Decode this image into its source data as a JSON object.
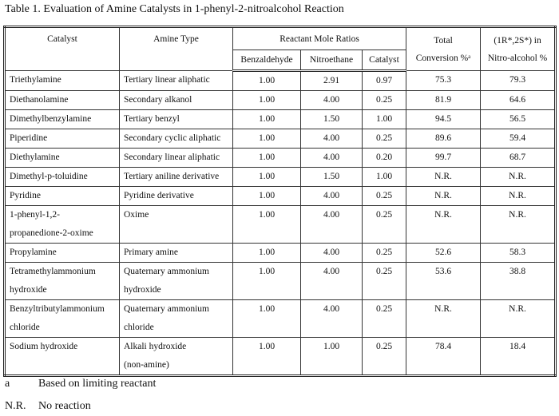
{
  "title": "Table 1.  Evaluation of Amine Catalysts in 1-phenyl-2-nitroalcohol Reaction",
  "headers": {
    "catalyst": "Catalyst",
    "amine_type": "Amine Type",
    "ratios": "Reactant Mole Ratios",
    "benzaldehyde": "Benzaldehyde",
    "nitroethane": "Nitroethane",
    "catalyst_ratio": "Catalyst",
    "total_1": "Total",
    "total_2": "Conversion %ᵃ",
    "nitro_1": "(1R*,2S*) in",
    "nitro_2": "Nitro-alcohol %"
  },
  "rows": [
    {
      "catalyst": [
        "Triethylamine"
      ],
      "type": [
        "Tertiary linear aliphatic"
      ],
      "benz": "1.00",
      "nitro": "2.91",
      "cat": "0.97",
      "conv": "75.3",
      "na": "79.3"
    },
    {
      "catalyst": [
        "Diethanolamine"
      ],
      "type": [
        "Secondary alkanol"
      ],
      "benz": "1.00",
      "nitro": "4.00",
      "cat": "0.25",
      "conv": "81.9",
      "na": "64.6"
    },
    {
      "catalyst": [
        "Dimethylbenzylamine"
      ],
      "type": [
        "Tertiary benzyl"
      ],
      "benz": "1.00",
      "nitro": "1.50",
      "cat": "1.00",
      "conv": "94.5",
      "na": "56.5"
    },
    {
      "catalyst": [
        "Piperidine"
      ],
      "type": [
        "Secondary cyclic aliphatic"
      ],
      "benz": "1.00",
      "nitro": "4.00",
      "cat": "0.25",
      "conv": "89.6",
      "na": "59.4"
    },
    {
      "catalyst": [
        "Diethylamine"
      ],
      "type": [
        "Secondary linear aliphatic"
      ],
      "benz": "1.00",
      "nitro": "4.00",
      "cat": "0.20",
      "conv": "99.7",
      "na": "68.7"
    },
    {
      "catalyst": [
        "Dimethyl-p-toluidine"
      ],
      "type": [
        "Tertiary aniline derivative"
      ],
      "benz": "1.00",
      "nitro": "1.50",
      "cat": "1.00",
      "conv": "N.R.",
      "na": "N.R."
    },
    {
      "catalyst": [
        "Pyridine"
      ],
      "type": [
        "Pyridine derivative"
      ],
      "benz": "1.00",
      "nitro": "4.00",
      "cat": "0.25",
      "conv": "N.R.",
      "na": "N.R."
    },
    {
      "catalyst": [
        "1-phenyl-1,2-",
        "propanedione-2-oxime"
      ],
      "type": [
        "Oxime"
      ],
      "benz": "1.00",
      "nitro": "4.00",
      "cat": "0.25",
      "conv": "N.R.",
      "na": "N.R."
    },
    {
      "catalyst": [
        "Propylamine"
      ],
      "type": [
        "Primary amine"
      ],
      "benz": "1.00",
      "nitro": "4.00",
      "cat": "0.25",
      "conv": "52.6",
      "na": "58.3"
    },
    {
      "catalyst": [
        "Tetramethylammonium",
        "hydroxide"
      ],
      "type": [
        "Quaternary ammonium",
        "hydroxide"
      ],
      "benz": "1.00",
      "nitro": "4.00",
      "cat": "0.25",
      "conv": "53.6",
      "na": "38.8"
    },
    {
      "catalyst": [
        "Benzyltributylammonium",
        "chloride"
      ],
      "type": [
        "Quaternary ammonium",
        "chloride"
      ],
      "benz": "1.00",
      "nitro": "4.00",
      "cat": "0.25",
      "conv": "N.R.",
      "na": "N.R."
    },
    {
      "catalyst": [
        "Sodium hydroxide"
      ],
      "type": [
        "Alkali hydroxide",
        "(non-amine)"
      ],
      "benz": "1.00",
      "nitro": "1.00",
      "cat": "0.25",
      "conv": "78.4",
      "na": "18.4"
    }
  ],
  "footnotes": [
    {
      "key": "a",
      "text": "Based on limiting reactant"
    },
    {
      "key": "N.R.",
      "text": "No reaction"
    }
  ]
}
